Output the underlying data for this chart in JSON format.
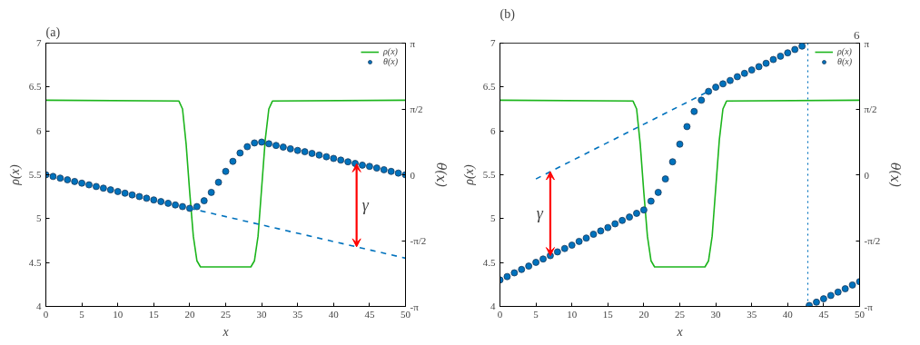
{
  "chart_data": [
    {
      "type": "line",
      "title": "(a)",
      "xlabel": "x",
      "ylabel": "ρ(x)",
      "y2label": "θ(x)",
      "xlim": [
        0,
        50
      ],
      "xticks": [
        0,
        5,
        10,
        15,
        20,
        25,
        30,
        35,
        40,
        45,
        50
      ],
      "ylim": [
        4,
        7
      ],
      "yticks": [
        4,
        4.5,
        5,
        5.5,
        6,
        6.5,
        7
      ],
      "y2lim": [
        -3.1416,
        3.1416
      ],
      "y2ticks": [
        {
          "value": -3.1416,
          "label": "-π"
        },
        {
          "value": -1.5708,
          "label": "-π/2"
        },
        0,
        {
          "value": 1.5708,
          "label": "π/2"
        },
        {
          "value": 3.1416,
          "label": "π"
        }
      ],
      "grid": false,
      "legend": "top right",
      "series": [
        {
          "name": "ρ(x)",
          "color": "#1cb51c",
          "line_style": "solid",
          "x": [
            0,
            18.5,
            19,
            19.5,
            20,
            20.5,
            21,
            21.5,
            28.5,
            29,
            29.5,
            30,
            30.5,
            31,
            31.5,
            50
          ],
          "values": [
            6.35,
            6.34,
            6.25,
            5.85,
            5.3,
            4.8,
            4.52,
            4.45,
            4.45,
            4.52,
            4.8,
            5.35,
            5.9,
            6.25,
            6.34,
            6.35
          ]
        },
        {
          "name": "θ(x)",
          "type": "scatter",
          "marker": "circle",
          "axis": "y2",
          "color": "#0072bd",
          "x": [
            0,
            1,
            2,
            3,
            4,
            5,
            6,
            7,
            8,
            9,
            10,
            11,
            12,
            13,
            14,
            15,
            16,
            17,
            18,
            19,
            20,
            21,
            22,
            23,
            24,
            25,
            26,
            27,
            28,
            29,
            30,
            31,
            32,
            33,
            34,
            35,
            36,
            37,
            38,
            39,
            40,
            41,
            42,
            43,
            44,
            45,
            46,
            47,
            48,
            49,
            50
          ],
          "values": [
            0,
            -0.04,
            -0.08,
            -0.12,
            -0.16,
            -0.2,
            -0.24,
            -0.28,
            -0.32,
            -0.36,
            -0.4,
            -0.44,
            -0.48,
            -0.52,
            -0.56,
            -0.6,
            -0.64,
            -0.68,
            -0.72,
            -0.76,
            -0.8,
            -0.76,
            -0.62,
            -0.42,
            -0.18,
            0.08,
            0.32,
            0.52,
            0.67,
            0.76,
            0.78,
            0.74,
            0.7,
            0.66,
            0.62,
            0.58,
            0.55,
            0.51,
            0.47,
            0.43,
            0.39,
            0.35,
            0.31,
            0.27,
            0.23,
            0.2,
            0.16,
            0.12,
            0.08,
            0.04,
            0
          ]
        },
        {
          "type": "line",
          "axis": "y2",
          "color": "#0072bd",
          "line_style": "dashed",
          "x": [
            20,
            50
          ],
          "values": [
            -0.8,
            -1.99
          ]
        }
      ],
      "annotations": [
        "γ"
      ]
    },
    {
      "type": "line",
      "title": "(b)",
      "xlabel": "x",
      "ylabel": "ρ(x)",
      "y2label": "θ(x)",
      "xlim": [
        0,
        50
      ],
      "xticks": [
        0,
        5,
        10,
        15,
        20,
        25,
        30,
        35,
        40,
        45,
        50
      ],
      "ylim": [
        4,
        7
      ],
      "yticks": [
        4,
        4.5,
        5,
        5.5,
        6,
        6.5,
        7
      ],
      "y2lim": [
        -3.1416,
        3.1416
      ],
      "y2ticks": [
        {
          "value": -3.1416,
          "label": "-π"
        },
        {
          "value": -1.5708,
          "label": "-π/2"
        },
        0,
        {
          "value": 1.5708,
          "label": "π/2"
        },
        {
          "value": 3.1416,
          "label": "π"
        }
      ],
      "grid": false,
      "legend": "top right",
      "series": [
        {
          "name": "ρ(x)",
          "color": "#1cb51c",
          "line_style": "solid",
          "x": [
            0,
            18.5,
            19,
            19.5,
            20,
            20.5,
            21,
            21.5,
            28.5,
            29,
            29.5,
            30,
            30.5,
            31,
            31.5,
            50
          ],
          "values": [
            6.35,
            6.34,
            6.25,
            5.85,
            5.3,
            4.8,
            4.52,
            4.45,
            4.45,
            4.52,
            4.8,
            5.35,
            5.9,
            6.25,
            6.34,
            6.35
          ]
        },
        {
          "name": "θ(x)",
          "type": "scatter",
          "marker": "circle",
          "axis": "y2",
          "color": "#0072bd",
          "x": [
            0,
            1,
            2,
            3,
            4,
            5,
            6,
            7,
            8,
            9,
            10,
            11,
            12,
            13,
            14,
            15,
            16,
            17,
            18,
            19,
            20,
            21,
            22,
            23,
            24,
            25,
            26,
            27,
            28,
            29,
            30,
            31,
            32,
            33,
            34,
            35,
            36,
            37,
            38,
            39,
            40,
            41,
            42,
            43,
            44,
            45,
            46,
            47,
            48,
            49,
            50
          ],
          "values": [
            -2.51,
            -2.43,
            -2.34,
            -2.26,
            -2.18,
            -2.09,
            -2.01,
            -1.93,
            -1.84,
            -1.76,
            -1.68,
            -1.59,
            -1.51,
            -1.42,
            -1.34,
            -1.26,
            -1.17,
            -1.09,
            -1.01,
            -0.92,
            -0.84,
            -0.63,
            -0.42,
            -0.1,
            0.31,
            0.73,
            1.15,
            1.51,
            1.78,
            1.99,
            2.09,
            2.17,
            2.25,
            2.34,
            2.42,
            2.5,
            2.58,
            2.66,
            2.75,
            2.83,
            2.91,
            2.99,
            3.07,
            -3.12,
            -3.04,
            -2.96,
            -2.88,
            -2.8,
            -2.72,
            -2.63,
            -2.55
          ]
        },
        {
          "type": "line",
          "axis": "y2",
          "color": "#0072bd",
          "line_style": "dashed",
          "x": [
            5,
            29
          ],
          "values": [
            -0.1,
            1.99
          ]
        }
      ],
      "ref_lines": [
        {
          "axis": "x",
          "value": 42.8,
          "color": "#0072bd",
          "line_style": "dotted"
        }
      ],
      "annotations": [
        "γ",
        "6"
      ]
    }
  ]
}
